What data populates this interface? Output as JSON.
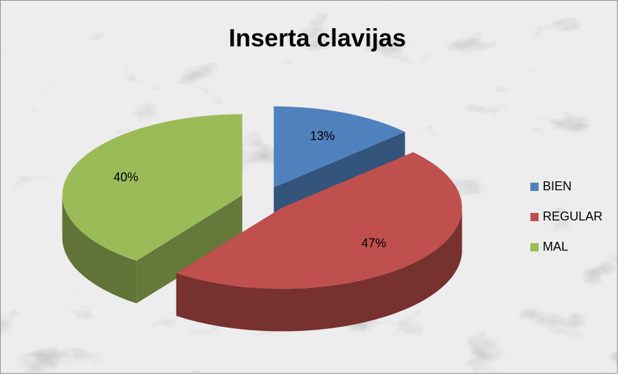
{
  "chart_data": {
    "type": "pie3d",
    "title": "Inserta clavijas",
    "categories": [
      "BIEN",
      "REGULAR",
      "MAL"
    ],
    "values": [
      13,
      47,
      40
    ],
    "value_labels": [
      "13%",
      "47%",
      "40%"
    ],
    "colors": [
      "#4f81bd",
      "#c0504d",
      "#9bbb59"
    ],
    "legend": "right"
  }
}
